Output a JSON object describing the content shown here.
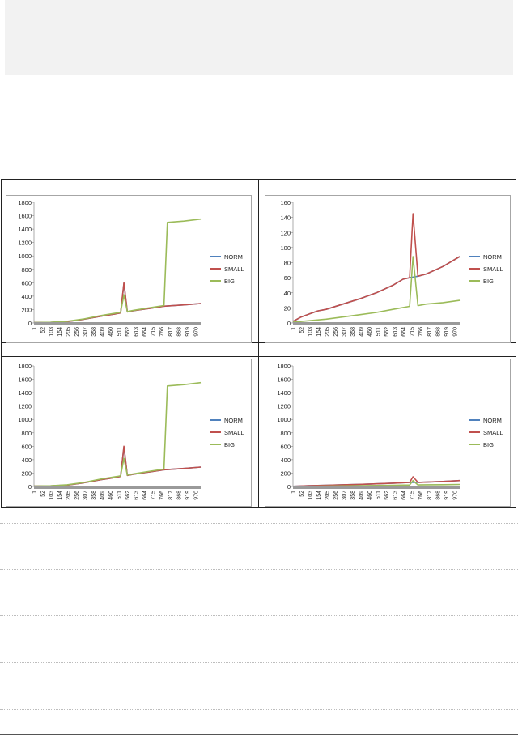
{
  "chart_data": [
    {
      "type": "line",
      "ylim": [
        0,
        1800
      ],
      "yticks": [
        0,
        200,
        400,
        600,
        800,
        1000,
        1200,
        1400,
        1600,
        1800
      ],
      "categories": [
        "1",
        "52",
        "103",
        "154",
        "205",
        "256",
        "307",
        "358",
        "409",
        "460",
        "511",
        "562",
        "613",
        "664",
        "715",
        "766",
        "817",
        "868",
        "919",
        "970"
      ],
      "legend_position": "right",
      "series": [
        {
          "name": "NORM",
          "color": "#4f81bd",
          "x": [
            1,
            100,
            200,
            300,
            400,
            500,
            520,
            540,
            560,
            600,
            700,
            780,
            900,
            1000
          ],
          "values": [
            5,
            8,
            20,
            55,
            100,
            140,
            150,
            590,
            165,
            185,
            220,
            250,
            270,
            290
          ]
        },
        {
          "name": "SMALL",
          "color": "#c0504d",
          "x": [
            1,
            100,
            200,
            300,
            400,
            500,
            520,
            540,
            560,
            600,
            700,
            780,
            900,
            1000
          ],
          "values": [
            5,
            8,
            20,
            55,
            100,
            140,
            150,
            600,
            165,
            185,
            220,
            250,
            270,
            290
          ]
        },
        {
          "name": "BIG",
          "color": "#9bbb59",
          "x": [
            1,
            100,
            200,
            300,
            400,
            500,
            520,
            540,
            560,
            600,
            700,
            780,
            800,
            900,
            1000
          ],
          "values": [
            5,
            10,
            25,
            60,
            110,
            150,
            160,
            420,
            170,
            190,
            230,
            260,
            1500,
            1520,
            1550
          ]
        }
      ]
    },
    {
      "type": "line",
      "ylim": [
        0,
        160
      ],
      "yticks": [
        0,
        20,
        40,
        60,
        80,
        100,
        120,
        140,
        160
      ],
      "categories": [
        "1",
        "52",
        "103",
        "154",
        "205",
        "256",
        "307",
        "358",
        "409",
        "460",
        "511",
        "562",
        "613",
        "664",
        "715",
        "766",
        "817",
        "868",
        "919",
        "970"
      ],
      "legend_position": "right",
      "series": [
        {
          "name": "NORM",
          "color": "#4f81bd",
          "x": [
            1,
            50,
            100,
            150,
            200,
            300,
            400,
            500,
            600,
            660,
            700,
            750,
            800,
            900,
            1000
          ],
          "values": [
            2,
            8,
            12,
            16,
            18,
            25,
            32,
            40,
            50,
            58,
            60,
            62,
            65,
            75,
            88
          ]
        },
        {
          "name": "SMALL",
          "color": "#c0504d",
          "x": [
            1,
            50,
            100,
            150,
            200,
            300,
            400,
            500,
            600,
            660,
            700,
            720,
            750,
            800,
            900,
            1000
          ],
          "values": [
            2,
            8,
            12,
            16,
            18,
            25,
            32,
            40,
            50,
            58,
            60,
            145,
            62,
            65,
            75,
            88
          ]
        },
        {
          "name": "BIG",
          "color": "#9bbb59",
          "x": [
            1,
            100,
            200,
            300,
            400,
            500,
            600,
            700,
            720,
            750,
            800,
            900,
            1000
          ],
          "values": [
            1,
            3,
            5,
            8,
            11,
            14,
            18,
            22,
            88,
            23,
            25,
            27,
            30
          ]
        }
      ]
    },
    {
      "type": "line",
      "ylim": [
        0,
        1800
      ],
      "yticks": [
        0,
        200,
        400,
        600,
        800,
        1000,
        1200,
        1400,
        1600,
        1800
      ],
      "categories": [
        "1",
        "52",
        "103",
        "154",
        "205",
        "256",
        "307",
        "358",
        "409",
        "460",
        "511",
        "562",
        "613",
        "664",
        "715",
        "766",
        "817",
        "868",
        "919",
        "970"
      ],
      "legend_position": "right",
      "series": [
        {
          "name": "NORM",
          "color": "#4f81bd",
          "x": [
            1,
            100,
            200,
            300,
            400,
            500,
            520,
            540,
            560,
            600,
            700,
            780,
            900,
            1000
          ],
          "values": [
            5,
            8,
            20,
            55,
            100,
            140,
            150,
            590,
            165,
            185,
            220,
            250,
            270,
            290
          ]
        },
        {
          "name": "SMALL",
          "color": "#c0504d",
          "x": [
            1,
            100,
            200,
            300,
            400,
            500,
            520,
            540,
            560,
            600,
            700,
            780,
            900,
            1000
          ],
          "values": [
            5,
            8,
            20,
            55,
            100,
            140,
            150,
            600,
            165,
            185,
            220,
            250,
            270,
            290
          ]
        },
        {
          "name": "BIG",
          "color": "#9bbb59",
          "x": [
            1,
            100,
            200,
            300,
            400,
            500,
            520,
            540,
            560,
            600,
            700,
            780,
            800,
            900,
            1000
          ],
          "values": [
            5,
            10,
            25,
            60,
            110,
            150,
            160,
            420,
            170,
            190,
            230,
            260,
            1500,
            1520,
            1550
          ]
        }
      ]
    },
    {
      "type": "line",
      "ylim": [
        0,
        1800
      ],
      "yticks": [
        0,
        200,
        400,
        600,
        800,
        1000,
        1200,
        1400,
        1600,
        1800
      ],
      "categories": [
        "1",
        "52",
        "103",
        "154",
        "205",
        "256",
        "307",
        "358",
        "409",
        "460",
        "511",
        "562",
        "613",
        "664",
        "715",
        "766",
        "817",
        "868",
        "919",
        "970"
      ],
      "legend_position": "right",
      "series": [
        {
          "name": "NORM",
          "color": "#4f81bd",
          "x": [
            1,
            100,
            200,
            300,
            400,
            500,
            600,
            700,
            720,
            750,
            800,
            900,
            1000
          ],
          "values": [
            2,
            12,
            18,
            25,
            32,
            40,
            50,
            60,
            60,
            62,
            65,
            75,
            88
          ]
        },
        {
          "name": "SMALL",
          "color": "#c0504d",
          "x": [
            1,
            100,
            200,
            300,
            400,
            500,
            600,
            700,
            720,
            750,
            800,
            900,
            1000
          ],
          "values": [
            2,
            12,
            18,
            25,
            32,
            40,
            50,
            60,
            145,
            62,
            65,
            75,
            88
          ]
        },
        {
          "name": "BIG",
          "color": "#9bbb59",
          "x": [
            1,
            100,
            200,
            300,
            400,
            500,
            600,
            700,
            720,
            750,
            800,
            900,
            1000
          ],
          "values": [
            1,
            3,
            5,
            8,
            11,
            14,
            18,
            22,
            88,
            23,
            25,
            27,
            30
          ]
        }
      ]
    }
  ]
}
